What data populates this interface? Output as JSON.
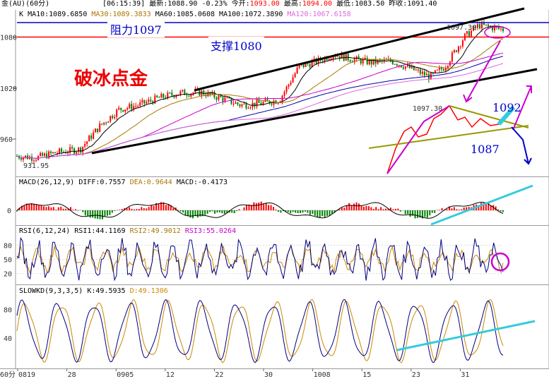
{
  "header": {
    "symbol": "金(AU)(60分)",
    "time": "[06:15:39]",
    "latest_label": "最新:",
    "latest_value": "1088.90",
    "change": "-0.23%",
    "open_label": "今开:",
    "open_value": "1093.00",
    "high_label": "最高:",
    "high_value": "1094.00",
    "low_label": "最低:",
    "low_value": "1083.50",
    "prev_close_label": "昨收:",
    "prev_close_value": "1091.40"
  },
  "ma_legend": {
    "k": "K",
    "ma10": "MA10:1089.6850",
    "ma30": "MA30:1089.3833",
    "ma60": "MA60:1085.0608",
    "ma100": "MA100:1072.3890",
    "ma120": "MA120:1067.6158"
  },
  "annotations": {
    "resistance": "阻力1097",
    "support": "支撑1080",
    "headline": "破冰点金",
    "high_mark": "1097.30",
    "inset_high_mark": "1097.30",
    "level_1092": "1092",
    "level_1087": "1087",
    "low_mark": "931.95"
  },
  "macd_legend": {
    "name": "MACD(26,12,9)",
    "diff": "DIFF:0.7557",
    "dea": "DEA:0.9644",
    "macd": "MACD:-0.4173"
  },
  "rsi_legend": {
    "name": "RSI(6,12,24)",
    "rsi1": "RSI1:44.1169",
    "rsi2": "RSI2:49.9012",
    "rsi3": "RSI3:55.0264"
  },
  "kd_legend": {
    "name": "SLOWKD(9,3,3,5)",
    "k": "K:49.5935",
    "d": "D:49.1306"
  },
  "colors": {
    "up": "#ff0000",
    "down": "#008000",
    "ma10": "#000000",
    "ma30": "#aa7700",
    "ma60": "#cc00cc",
    "ma100": "#0000aa",
    "ma120": "#dd66dd",
    "resistance": "#0000cc",
    "support": "#ff0000",
    "trend_line": "#000000",
    "triangle": "#999900",
    "arrow_magenta": "#cc00cc",
    "arrow_blue": "#0000cc",
    "cyan_trend": "#33ccdd",
    "kd_k": "#000080",
    "kd_d": "#cc8800"
  },
  "chart_data": [
    {
      "type": "candlestick",
      "panel": "price",
      "ytick_labels": [
        "1080",
        "1020",
        "960"
      ],
      "ylim": [
        916,
        1112
      ],
      "resistance_level": 1097,
      "support_level": 1080,
      "period_low": 931.95,
      "period_high": 1097.3,
      "xtick_labels": [
        "0819",
        "28",
        "0905",
        "12",
        "22",
        "30",
        "1008",
        "15",
        "23",
        "31"
      ],
      "x_period_label": "60分",
      "close_path": [
        [
          0,
          940
        ],
        [
          0.04,
          938
        ],
        [
          0.08,
          944
        ],
        [
          0.13,
          948
        ],
        [
          0.17,
          975
        ],
        [
          0.21,
          995
        ],
        [
          0.25,
          1000
        ],
        [
          0.29,
          1008
        ],
        [
          0.33,
          1014
        ],
        [
          0.38,
          1015
        ],
        [
          0.42,
          1008
        ],
        [
          0.46,
          1000
        ],
        [
          0.5,
          1002
        ],
        [
          0.54,
          1006
        ],
        [
          0.58,
          1045
        ],
        [
          0.62,
          1052
        ],
        [
          0.65,
          1060
        ],
        [
          0.69,
          1054
        ],
        [
          0.73,
          1050
        ],
        [
          0.77,
          1052
        ],
        [
          0.81,
          1043
        ],
        [
          0.85,
          1033
        ],
        [
          0.88,
          1045
        ],
        [
          0.92,
          1080
        ],
        [
          0.95,
          1094
        ],
        [
          0.98,
          1091
        ],
        [
          1,
          1089
        ]
      ]
    },
    {
      "type": "bar",
      "panel": "macd",
      "ytick_labels": [
        "0"
      ],
      "diff_last": 0.7557,
      "dea_last": 0.9644,
      "macd_last": -0.4173
    },
    {
      "type": "line",
      "panel": "rsi",
      "ytick_labels": [
        "80",
        "50",
        "20"
      ],
      "ylim": [
        0,
        100
      ],
      "last": {
        "rsi1": 44.1169,
        "rsi2": 49.9012,
        "rsi3": 55.0264
      }
    },
    {
      "type": "line",
      "panel": "slowkd",
      "ytick_labels": [
        "80",
        "40"
      ],
      "ylim": [
        0,
        100
      ],
      "last": {
        "k": 49.5935,
        "d": 49.1306
      }
    }
  ]
}
